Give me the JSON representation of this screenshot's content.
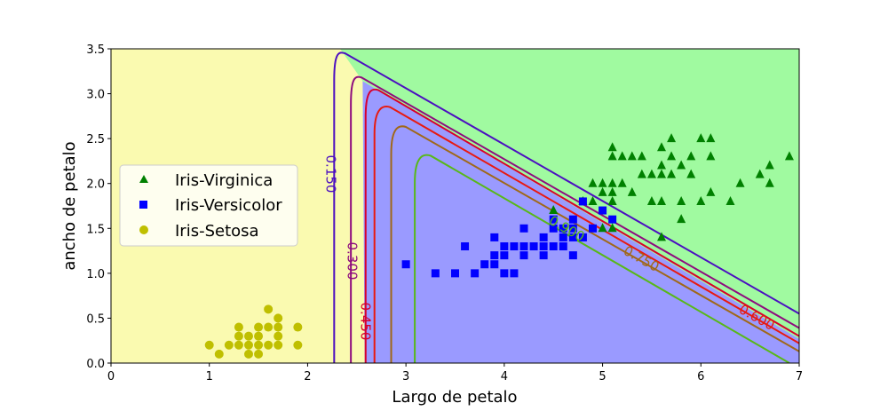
{
  "chart_data": {
    "type": "scatter",
    "title": "",
    "xlabel": "Largo de petalo",
    "ylabel": "ancho de petalo",
    "xlim": [
      0,
      7
    ],
    "ylim": [
      0,
      3.5
    ],
    "xticks": [
      "0",
      "1",
      "2",
      "3",
      "4",
      "5",
      "6",
      "7"
    ],
    "yticks": [
      "0.0",
      "0.5",
      "1.0",
      "1.5",
      "2.0",
      "2.5",
      "3.0",
      "3.5"
    ],
    "legend_position": "center-left",
    "regions": [
      {
        "name": "Iris-Setosa",
        "color": "#fafab0",
        "polygon": [
          [
            0,
            0
          ],
          [
            7,
            0
          ],
          [
            7,
            3.5
          ],
          [
            0,
            3.5
          ]
        ]
      },
      {
        "name": "Iris-Versicolor",
        "color": "#9a9aff",
        "polygon": [
          [
            2.58,
            0
          ],
          [
            7,
            0
          ],
          [
            7,
            0.27
          ],
          [
            2.56,
            3.14
          ]
        ]
      },
      {
        "name": "Iris-Virginica",
        "color": "#a0faa0",
        "polygon": [
          [
            2.33,
            3.5
          ],
          [
            7,
            3.5
          ],
          [
            7,
            0.27
          ],
          [
            2.56,
            3.14
          ]
        ]
      }
    ],
    "contours": [
      {
        "label": "0.150",
        "color": "#4b0fc0",
        "x0": 2.27,
        "top": [
          2.38,
          3.45
        ],
        "end": [
          7,
          0.55
        ]
      },
      {
        "label": "0.300",
        "color": "#8e0c7e",
        "x0": 2.44,
        "top": [
          2.55,
          3.18
        ],
        "end": [
          7,
          0.39
        ]
      },
      {
        "label": "0.450",
        "color": "#d8002c",
        "x0": 2.59,
        "top": [
          2.72,
          3.04
        ],
        "end": [
          7,
          0.3
        ]
      },
      {
        "label": "0.600",
        "color": "#e81a10",
        "x0": 2.68,
        "top": [
          2.84,
          2.85
        ],
        "end": [
          7,
          0.22
        ]
      },
      {
        "label": "0.750",
        "color": "#a06818",
        "x0": 2.85,
        "top": [
          3.0,
          2.63
        ],
        "end": [
          7,
          0.13
        ]
      },
      {
        "label": "0.900",
        "color": "#58b818",
        "x0": 3.09,
        "top": [
          3.25,
          2.31
        ],
        "end": [
          6.9,
          0
        ]
      }
    ],
    "series": [
      {
        "name": "Iris-Virginica",
        "marker": "triangle",
        "color": "#008000",
        "points": [
          [
            4.5,
            1.7
          ],
          [
            4.8,
            1.8
          ],
          [
            4.9,
            1.8
          ],
          [
            4.9,
            2.0
          ],
          [
            5.0,
            1.5
          ],
          [
            5.0,
            1.9
          ],
          [
            5.0,
            2.0
          ],
          [
            5.1,
            1.5
          ],
          [
            5.1,
            1.8
          ],
          [
            5.1,
            1.9
          ],
          [
            5.1,
            2.0
          ],
          [
            5.1,
            2.3
          ],
          [
            5.1,
            2.4
          ],
          [
            5.2,
            2.0
          ],
          [
            5.2,
            2.3
          ],
          [
            5.3,
            1.9
          ],
          [
            5.3,
            2.3
          ],
          [
            5.4,
            2.1
          ],
          [
            5.4,
            2.3
          ],
          [
            5.5,
            1.8
          ],
          [
            5.5,
            2.1
          ],
          [
            5.6,
            1.4
          ],
          [
            5.6,
            1.8
          ],
          [
            5.6,
            2.1
          ],
          [
            5.6,
            2.2
          ],
          [
            5.6,
            2.4
          ],
          [
            5.7,
            2.1
          ],
          [
            5.7,
            2.3
          ],
          [
            5.7,
            2.5
          ],
          [
            5.8,
            1.6
          ],
          [
            5.8,
            1.8
          ],
          [
            5.8,
            2.2
          ],
          [
            5.9,
            2.1
          ],
          [
            5.9,
            2.3
          ],
          [
            6.0,
            1.8
          ],
          [
            6.0,
            2.5
          ],
          [
            6.1,
            1.9
          ],
          [
            6.1,
            2.3
          ],
          [
            6.1,
            2.5
          ],
          [
            6.3,
            1.8
          ],
          [
            6.4,
            2.0
          ],
          [
            6.6,
            2.1
          ],
          [
            6.7,
            2.0
          ],
          [
            6.7,
            2.2
          ],
          [
            6.9,
            2.3
          ]
        ]
      },
      {
        "name": "Iris-Versicolor",
        "marker": "square",
        "color": "#0000ff",
        "points": [
          [
            3.0,
            1.1
          ],
          [
            3.3,
            1.0
          ],
          [
            3.5,
            1.0
          ],
          [
            3.6,
            1.3
          ],
          [
            3.7,
            1.0
          ],
          [
            3.8,
            1.1
          ],
          [
            3.9,
            1.1
          ],
          [
            3.9,
            1.2
          ],
          [
            3.9,
            1.4
          ],
          [
            4.0,
            1.0
          ],
          [
            4.0,
            1.2
          ],
          [
            4.0,
            1.3
          ],
          [
            4.1,
            1.0
          ],
          [
            4.1,
            1.3
          ],
          [
            4.2,
            1.2
          ],
          [
            4.2,
            1.3
          ],
          [
            4.2,
            1.5
          ],
          [
            4.3,
            1.3
          ],
          [
            4.4,
            1.2
          ],
          [
            4.4,
            1.3
          ],
          [
            4.4,
            1.4
          ],
          [
            4.5,
            1.3
          ],
          [
            4.5,
            1.5
          ],
          [
            4.5,
            1.6
          ],
          [
            4.6,
            1.3
          ],
          [
            4.6,
            1.4
          ],
          [
            4.6,
            1.5
          ],
          [
            4.7,
            1.2
          ],
          [
            4.7,
            1.4
          ],
          [
            4.7,
            1.5
          ],
          [
            4.7,
            1.6
          ],
          [
            4.8,
            1.4
          ],
          [
            4.8,
            1.8
          ],
          [
            4.9,
            1.5
          ],
          [
            5.0,
            1.7
          ],
          [
            5.1,
            1.6
          ]
        ]
      },
      {
        "name": "Iris-Setosa",
        "marker": "circle",
        "color": "#bfbf00",
        "points": [
          [
            1.0,
            0.2
          ],
          [
            1.1,
            0.1
          ],
          [
            1.2,
            0.2
          ],
          [
            1.3,
            0.2
          ],
          [
            1.3,
            0.3
          ],
          [
            1.3,
            0.4
          ],
          [
            1.4,
            0.1
          ],
          [
            1.4,
            0.2
          ],
          [
            1.4,
            0.3
          ],
          [
            1.5,
            0.1
          ],
          [
            1.5,
            0.2
          ],
          [
            1.5,
            0.3
          ],
          [
            1.5,
            0.4
          ],
          [
            1.6,
            0.2
          ],
          [
            1.6,
            0.4
          ],
          [
            1.6,
            0.6
          ],
          [
            1.7,
            0.2
          ],
          [
            1.7,
            0.3
          ],
          [
            1.7,
            0.4
          ],
          [
            1.7,
            0.5
          ],
          [
            1.9,
            0.2
          ],
          [
            1.9,
            0.4
          ]
        ]
      }
    ]
  }
}
